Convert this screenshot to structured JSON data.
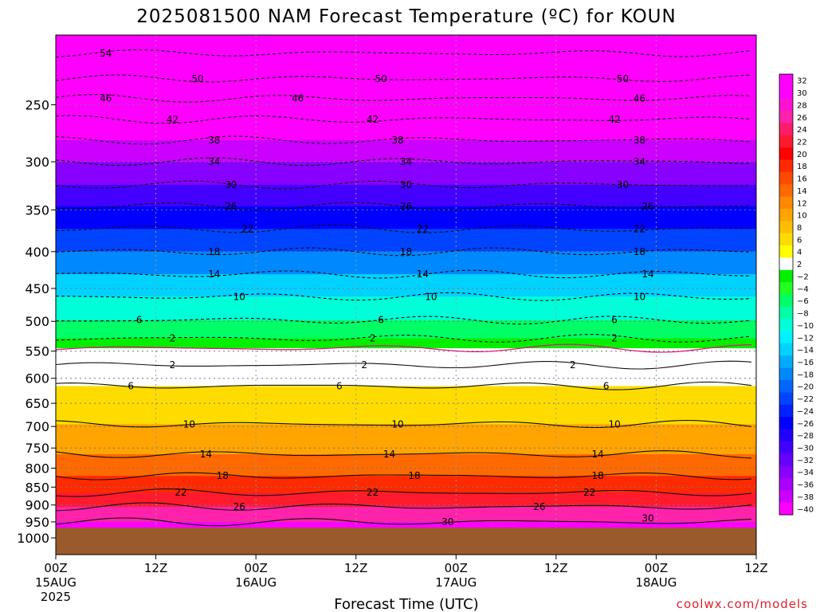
{
  "title": "2025081500 NAM Forecast Temperature (ºC) for KOUN",
  "credit": "coolwx.com/models",
  "chart_data": {
    "type": "heatmap",
    "title": "2025081500 NAM Forecast Temperature (ºC) for KOUN",
    "xlabel": "Forecast Time (UTC)",
    "ylabel": "",
    "x_range_hours": [
      0,
      84
    ],
    "y_scale": "log-pressure",
    "y_range_hPa": [
      1055,
      200
    ],
    "surface_pressure_hPa": 968,
    "y_ticks": [
      250,
      300,
      350,
      400,
      450,
      500,
      550,
      600,
      650,
      700,
      750,
      800,
      850,
      900,
      950,
      1000
    ],
    "x_ticks": [
      {
        "hour": 0,
        "time": "00Z",
        "date": "15AUG",
        "year": "2025"
      },
      {
        "hour": 12,
        "time": "12Z",
        "date": "",
        "year": ""
      },
      {
        "hour": 24,
        "time": "00Z",
        "date": "16AUG",
        "year": ""
      },
      {
        "hour": 36,
        "time": "12Z",
        "date": "",
        "year": ""
      },
      {
        "hour": 48,
        "time": "00Z",
        "date": "17AUG",
        "year": ""
      },
      {
        "hour": 60,
        "time": "12Z",
        "date": "",
        "year": ""
      },
      {
        "hour": 72,
        "time": "00Z",
        "date": "18AUG",
        "year": ""
      },
      {
        "hour": 84,
        "time": "12Z",
        "date": "",
        "year": ""
      }
    ],
    "colorbar": {
      "labels": [
        "32",
        "30",
        "28",
        "26",
        "24",
        "22",
        "20",
        "18",
        "16",
        "14",
        "12",
        "10",
        "8",
        "6",
        "4",
        "2",
        "−2",
        "−4",
        "−6",
        "−8",
        "−10",
        "−12",
        "−14",
        "−16",
        "−18",
        "−20",
        "−22",
        "−24",
        "−26",
        "−28",
        "−30",
        "−32",
        "−34",
        "−36",
        "−38",
        "−40"
      ],
      "colors": [
        "#ff00ff",
        "#ff00ff",
        "#ff13d2",
        "#ff22ab",
        "#ff1d6a",
        "#ff1a2e",
        "#ff0000",
        "#ff2a00",
        "#ff4a00",
        "#ff6a00",
        "#ff8800",
        "#ffa400",
        "#ffbf00",
        "#ffdc00",
        "#ffff00",
        "#ffffff",
        "#00f000",
        "#22ff22",
        "#00ff66",
        "#00ffa6",
        "#00ffd8",
        "#00f0ff",
        "#00d2ff",
        "#00aaff",
        "#0088ff",
        "#0066ff",
        "#0044ff",
        "#0022ff",
        "#0000ff",
        "#2200ff",
        "#4400ff",
        "#6600ff",
        "#8800ff",
        "#aa00ff",
        "#cc00ff",
        "#ff00ff"
      ]
    },
    "grid": "dotted",
    "temperature_levels": [
      {
        "pressure": 200,
        "temps": [
          -57,
          -57,
          -57,
          -57,
          -57,
          -57,
          -57,
          -57
        ]
      },
      {
        "pressure": 212,
        "temps": [
          -54,
          -54,
          -54,
          -54,
          -54,
          -54,
          -54,
          -54
        ]
      },
      {
        "pressure": 230,
        "temps": [
          -50,
          -50,
          -50,
          -50,
          -50,
          -50,
          -50,
          -50
        ]
      },
      {
        "pressure": 245,
        "temps": [
          -46,
          -46,
          -46,
          -46,
          -46,
          -46,
          -46,
          -46
        ]
      },
      {
        "pressure": 262,
        "temps": [
          -42,
          -42,
          -42,
          -42,
          -42,
          -42,
          -42,
          -42
        ]
      },
      {
        "pressure": 280,
        "temps": [
          -38,
          -38,
          -38,
          -38,
          -38,
          -38,
          -38,
          -38
        ]
      },
      {
        "pressure": 300,
        "temps": [
          -34,
          -34,
          -34,
          -34,
          -34,
          -34,
          -34,
          -34
        ]
      },
      {
        "pressure": 323,
        "temps": [
          -30,
          -30,
          -30,
          -30,
          -30,
          -30,
          -30,
          -30
        ]
      },
      {
        "pressure": 346,
        "temps": [
          -26,
          -26,
          -26,
          -26,
          -26,
          -26,
          -26,
          -26
        ]
      },
      {
        "pressure": 372,
        "temps": [
          -22,
          -22,
          -22,
          -22,
          -22,
          -22,
          -22,
          -22
        ]
      },
      {
        "pressure": 400,
        "temps": [
          -18,
          -18,
          -18,
          -18,
          -18,
          -18,
          -18,
          -18
        ]
      },
      {
        "pressure": 430,
        "temps": [
          -14,
          -14,
          -14,
          -14,
          -14,
          -14,
          -14,
          -14
        ]
      },
      {
        "pressure": 462,
        "temps": [
          -10,
          -10,
          -10,
          -10,
          -10,
          -10,
          -10,
          -10
        ]
      },
      {
        "pressure": 498,
        "temps": [
          -6,
          -6,
          -6,
          -6,
          -6,
          -6,
          -6,
          -6
        ]
      },
      {
        "pressure": 528,
        "temps": [
          -2,
          -2,
          -2,
          -2,
          -2,
          -2,
          -2,
          -2
        ]
      },
      {
        "pressure": 545,
        "temps": [
          0,
          0,
          0,
          0,
          0,
          0,
          0,
          0
        ]
      },
      {
        "pressure": 575,
        "temps": [
          2,
          2,
          2,
          2,
          2,
          2,
          2,
          2
        ]
      },
      {
        "pressure": 615,
        "temps": [
          6,
          6,
          6,
          6,
          6,
          6,
          6,
          6
        ]
      },
      {
        "pressure": 695,
        "temps": [
          10,
          10,
          10,
          10,
          10,
          10,
          10,
          10
        ]
      },
      {
        "pressure": 765,
        "temps": [
          14,
          14,
          14,
          14,
          14,
          14,
          14,
          14
        ]
      },
      {
        "pressure": 820,
        "temps": [
          18,
          18,
          18,
          18,
          18,
          18,
          18,
          18
        ]
      },
      {
        "pressure": 865,
        "temps": [
          22,
          22,
          22,
          22,
          22,
          22,
          22,
          22
        ]
      },
      {
        "pressure": 905,
        "temps": [
          26,
          26,
          26,
          26,
          26,
          26,
          26,
          26
        ]
      },
      {
        "pressure": 950,
        "temps": [
          30,
          30,
          30,
          30,
          30,
          30,
          30,
          30
        ]
      }
    ],
    "contours": [
      {
        "value": -54,
        "pressure": 212
      },
      {
        "value": -50,
        "pressure": 230
      },
      {
        "value": -46,
        "pressure": 245
      },
      {
        "value": -42,
        "pressure": 262
      },
      {
        "value": -38,
        "pressure": 280
      },
      {
        "value": -34,
        "pressure": 300
      },
      {
        "value": -30,
        "pressure": 323
      },
      {
        "value": -26,
        "pressure": 346
      },
      {
        "value": -22,
        "pressure": 372
      },
      {
        "value": -18,
        "pressure": 400
      },
      {
        "value": -14,
        "pressure": 430
      },
      {
        "value": -10,
        "pressure": 462
      },
      {
        "value": -6,
        "pressure": 498
      },
      {
        "value": -2,
        "pressure": 528
      },
      {
        "value": 0,
        "pressure": 545
      },
      {
        "value": 2,
        "pressure": 575
      },
      {
        "value": 6,
        "pressure": 615
      },
      {
        "value": 10,
        "pressure": 695
      },
      {
        "value": 14,
        "pressure": 765
      },
      {
        "value": 18,
        "pressure": 820
      },
      {
        "value": 22,
        "pressure": 865
      },
      {
        "value": 26,
        "pressure": 905
      },
      {
        "value": 30,
        "pressure": 950
      }
    ],
    "contour_labels": [
      {
        "text": "54",
        "hour": 6,
        "pressure": 212
      },
      {
        "text": "50",
        "hour": 17,
        "pressure": 230
      },
      {
        "text": "50",
        "hour": 39,
        "pressure": 230
      },
      {
        "text": "50",
        "hour": 68,
        "pressure": 230
      },
      {
        "text": "46",
        "hour": 6,
        "pressure": 245
      },
      {
        "text": "46",
        "hour": 29,
        "pressure": 245
      },
      {
        "text": "46",
        "hour": 70,
        "pressure": 245
      },
      {
        "text": "42",
        "hour": 14,
        "pressure": 262
      },
      {
        "text": "42",
        "hour": 38,
        "pressure": 262
      },
      {
        "text": "42",
        "hour": 67,
        "pressure": 262
      },
      {
        "text": "38",
        "hour": 19,
        "pressure": 280
      },
      {
        "text": "38",
        "hour": 41,
        "pressure": 280
      },
      {
        "text": "38",
        "hour": 70,
        "pressure": 280
      },
      {
        "text": "34",
        "hour": 19,
        "pressure": 300
      },
      {
        "text": "34",
        "hour": 42,
        "pressure": 300
      },
      {
        "text": "34",
        "hour": 70,
        "pressure": 300
      },
      {
        "text": "30",
        "hour": 21,
        "pressure": 323
      },
      {
        "text": "30",
        "hour": 42,
        "pressure": 323
      },
      {
        "text": "30",
        "hour": 68,
        "pressure": 323
      },
      {
        "text": "26",
        "hour": 21,
        "pressure": 346
      },
      {
        "text": "26",
        "hour": 42,
        "pressure": 346
      },
      {
        "text": "26",
        "hour": 71,
        "pressure": 346
      },
      {
        "text": "22",
        "hour": 23,
        "pressure": 372
      },
      {
        "text": "22",
        "hour": 44,
        "pressure": 372
      },
      {
        "text": "22",
        "hour": 70,
        "pressure": 372
      },
      {
        "text": "18",
        "hour": 19,
        "pressure": 400
      },
      {
        "text": "18",
        "hour": 42,
        "pressure": 400
      },
      {
        "text": "18",
        "hour": 70,
        "pressure": 400
      },
      {
        "text": "14",
        "hour": 19,
        "pressure": 430
      },
      {
        "text": "14",
        "hour": 44,
        "pressure": 430
      },
      {
        "text": "14",
        "hour": 71,
        "pressure": 430
      },
      {
        "text": "10",
        "hour": 22,
        "pressure": 462
      },
      {
        "text": "10",
        "hour": 45,
        "pressure": 462
      },
      {
        "text": "10",
        "hour": 70,
        "pressure": 462
      },
      {
        "text": "6",
        "hour": 10,
        "pressure": 498
      },
      {
        "text": "6",
        "hour": 39,
        "pressure": 498
      },
      {
        "text": "6",
        "hour": 67,
        "pressure": 498
      },
      {
        "text": "2",
        "hour": 14,
        "pressure": 528
      },
      {
        "text": "2",
        "hour": 38,
        "pressure": 528
      },
      {
        "text": "2",
        "hour": 67,
        "pressure": 528
      },
      {
        "text": "2",
        "hour": 14,
        "pressure": 575
      },
      {
        "text": "2",
        "hour": 37,
        "pressure": 575
      },
      {
        "text": "2",
        "hour": 62,
        "pressure": 575
      },
      {
        "text": "6",
        "hour": 9,
        "pressure": 615
      },
      {
        "text": "6",
        "hour": 34,
        "pressure": 615
      },
      {
        "text": "6",
        "hour": 66,
        "pressure": 615
      },
      {
        "text": "10",
        "hour": 16,
        "pressure": 695
      },
      {
        "text": "10",
        "hour": 41,
        "pressure": 695
      },
      {
        "text": "10",
        "hour": 67,
        "pressure": 695
      },
      {
        "text": "14",
        "hour": 18,
        "pressure": 765
      },
      {
        "text": "14",
        "hour": 40,
        "pressure": 765
      },
      {
        "text": "14",
        "hour": 65,
        "pressure": 765
      },
      {
        "text": "18",
        "hour": 20,
        "pressure": 820
      },
      {
        "text": "18",
        "hour": 43,
        "pressure": 820
      },
      {
        "text": "18",
        "hour": 65,
        "pressure": 820
      },
      {
        "text": "22",
        "hour": 15,
        "pressure": 865
      },
      {
        "text": "22",
        "hour": 38,
        "pressure": 865
      },
      {
        "text": "22",
        "hour": 64,
        "pressure": 865
      },
      {
        "text": "26",
        "hour": 22,
        "pressure": 905
      },
      {
        "text": "26",
        "hour": 58,
        "pressure": 905
      },
      {
        "text": "30",
        "hour": 47,
        "pressure": 950
      },
      {
        "text": "30",
        "hour": 71,
        "pressure": 940
      }
    ]
  }
}
